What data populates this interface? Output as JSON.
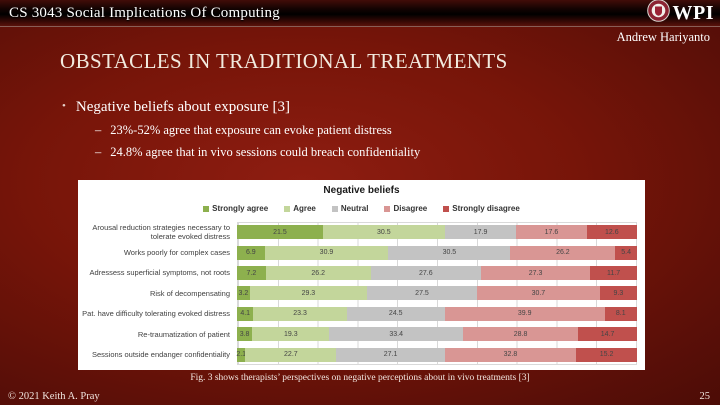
{
  "header": {
    "course": "CS 3043 Social Implications Of Computing",
    "logo_text": "WPI",
    "author": "Andrew Hariyanto"
  },
  "slide": {
    "title": "OBSTACLES IN TRADITIONAL TREATMENTS",
    "bullet": "Negative beliefs about exposure [3]",
    "sub_bullets": [
      "23%-52% agree that exposure can evoke patient distress",
      "24.8% agree that in vivo sessions could breach confidentiality"
    ],
    "caption": "Fig. 3 shows therapists’ perspectives on negative perceptions about in vivo treatments [3]"
  },
  "footer": {
    "copyright": "© 2021 Keith A. Pray",
    "page_number": "25"
  },
  "chart_data": {
    "type": "bar",
    "variant": "horizontal-100%-stacked",
    "title": "Negative beliefs",
    "legend_position": "top",
    "xlim": [
      0,
      100
    ],
    "gridlines": true,
    "grid_step": 10,
    "categories": [
      "Arousal reduction strategies necessary to tolerate evoked distress",
      "Works poorly for complex cases",
      "Adressess superficial symptoms, not roots",
      "Risk of decompensating",
      "Pat. have difficulty tolerating evoked distress",
      "Re-traumatization of patient",
      "Sessions outside endanger confidentiality"
    ],
    "series": [
      {
        "name": "Strongly agree",
        "color": "#8db04e",
        "values": [
          21.5,
          6.9,
          7.2,
          3.2,
          4.1,
          3.8,
          2.1
        ]
      },
      {
        "name": "Agree",
        "color": "#c3d69b",
        "values": [
          30.5,
          30.9,
          26.2,
          29.3,
          23.3,
          19.3,
          22.7
        ]
      },
      {
        "name": "Neutral",
        "color": "#c3c3c3",
        "values": [
          17.9,
          30.5,
          27.6,
          27.5,
          24.5,
          33.4,
          27.1
        ]
      },
      {
        "name": "Disagree",
        "color": "#d99694",
        "values": [
          17.6,
          26.2,
          27.3,
          30.7,
          39.9,
          28.8,
          32.8
        ]
      },
      {
        "name": "Strongly disagree",
        "color": "#c0504d",
        "values": [
          12.6,
          5.4,
          11.7,
          9.3,
          8.1,
          14.7,
          15.2
        ]
      }
    ]
  }
}
